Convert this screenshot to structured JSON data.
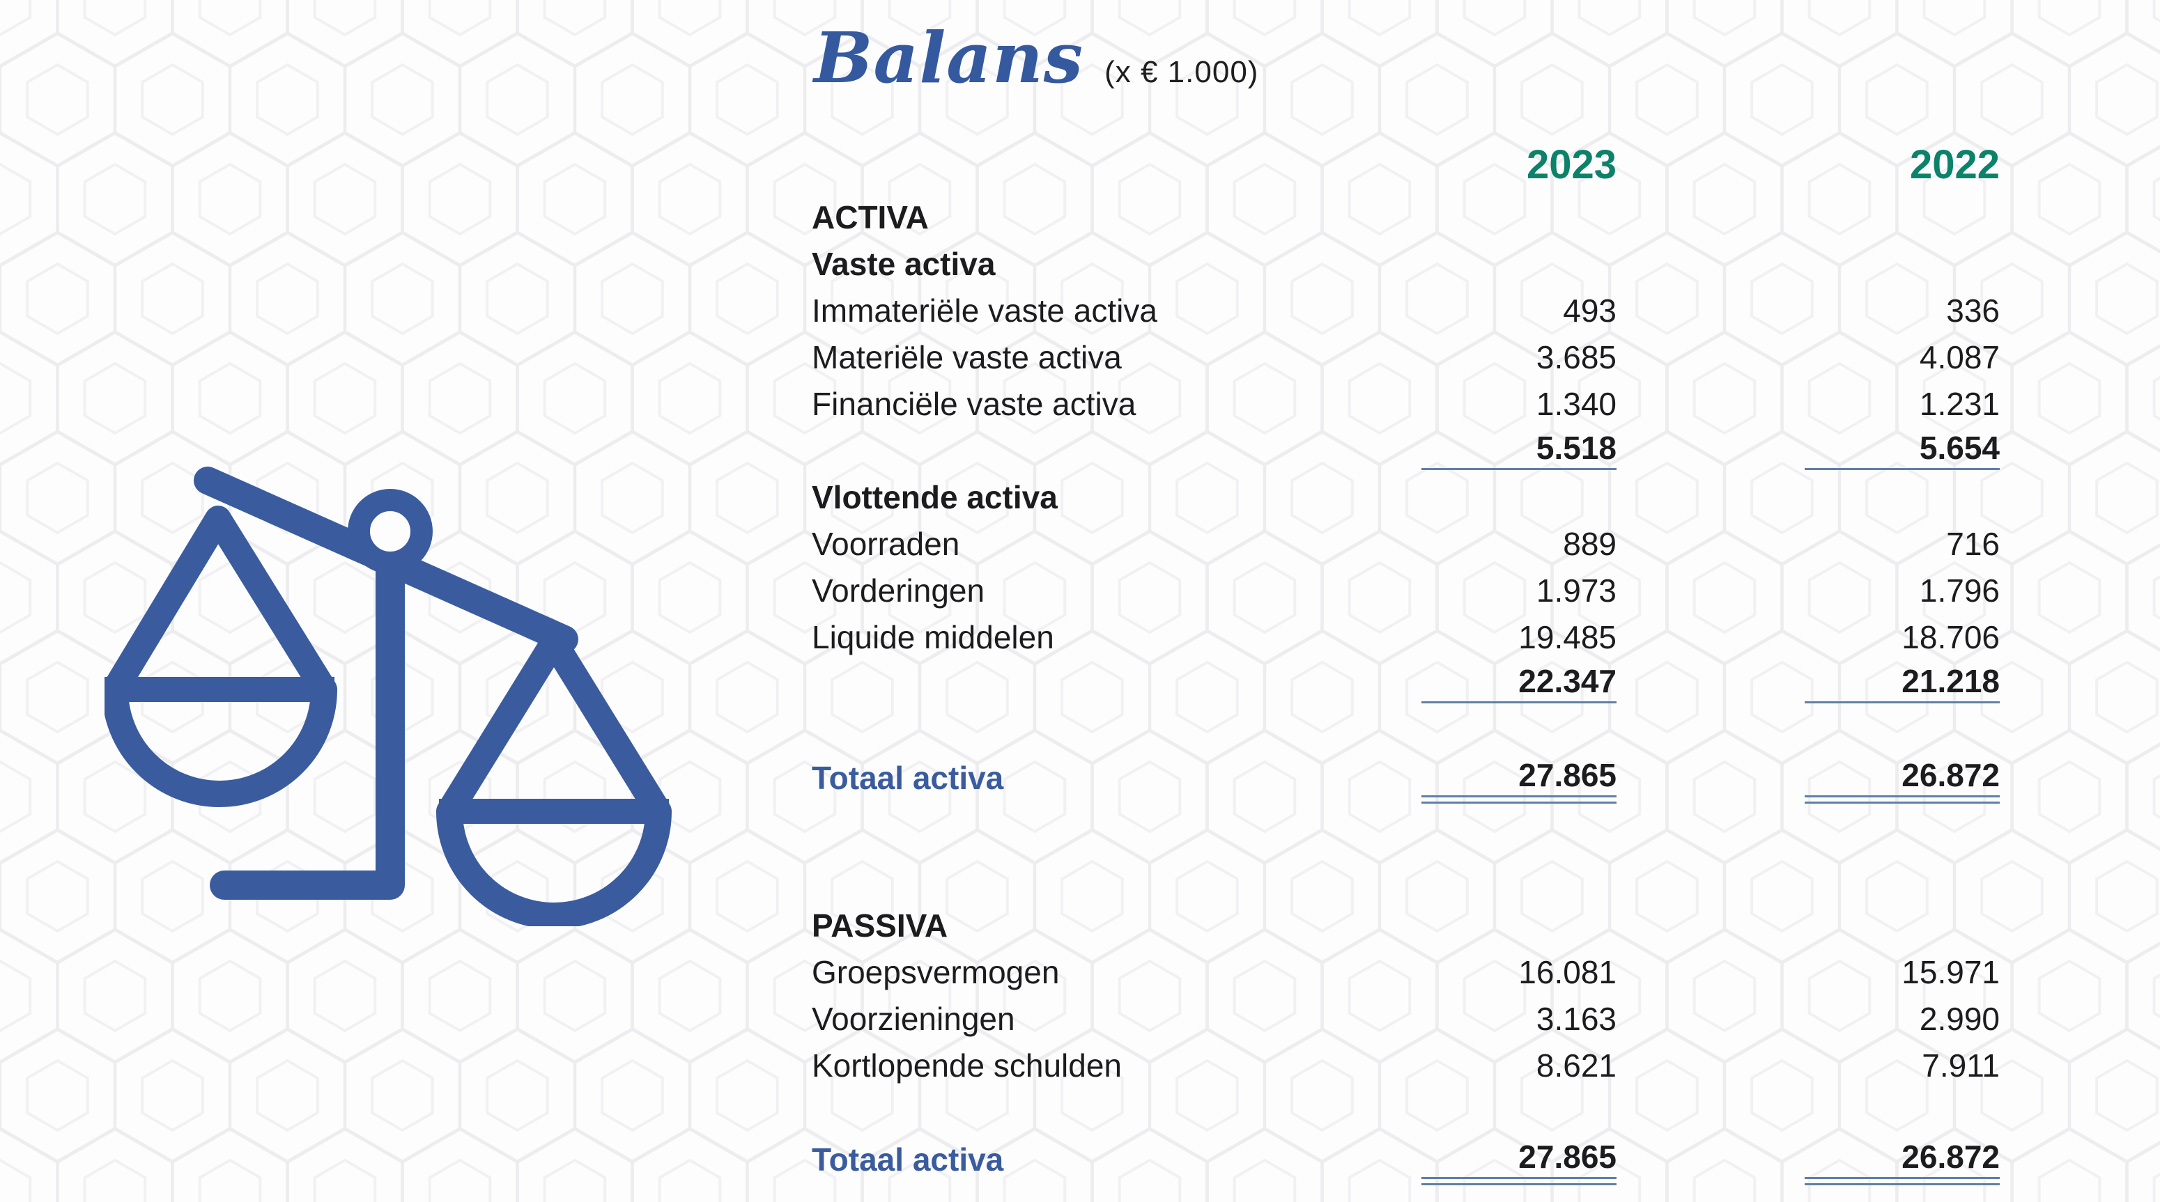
{
  "title": {
    "main": "Balans",
    "unit": "(x € 1.000)"
  },
  "columns": {
    "year1": "2023",
    "year2": "2022"
  },
  "colors": {
    "accent_blue": "#3A5C9E",
    "title_blue": "#35599E",
    "year_green": "#0B8269",
    "rule_blue": "#5F80A7",
    "text": "#1C1C1E",
    "background": "#FDFDFE",
    "pattern_line": "#EDEDEF"
  },
  "icon": {
    "name": "balance-scale-icon",
    "description": "tilted balance scale with two pans"
  },
  "rows": [
    {
      "type": "section",
      "gap": "none",
      "label": "ACTIVA",
      "y2023": "",
      "y2022": ""
    },
    {
      "type": "section",
      "gap": "none",
      "label": "Vaste activa",
      "y2023": "",
      "y2022": ""
    },
    {
      "type": "item",
      "gap": "none",
      "label": "Immateriële vaste activa",
      "y2023": "493",
      "y2022": "336"
    },
    {
      "type": "item",
      "gap": "none",
      "label": "Materiële vaste activa",
      "y2023": "3.685",
      "y2022": "4.087"
    },
    {
      "type": "item",
      "gap": "none",
      "label": "Financiële vaste activa",
      "y2023": "1.340",
      "y2022": "1.231"
    },
    {
      "type": "subtotal",
      "gap": "none",
      "label": "",
      "y2023": "5.518",
      "y2022": "5.654"
    },
    {
      "type": "section",
      "gap": "none",
      "label": "Vlottende activa",
      "y2023": "",
      "y2022": ""
    },
    {
      "type": "item",
      "gap": "none",
      "label": "Voorraden",
      "y2023": "889",
      "y2022": "716"
    },
    {
      "type": "item",
      "gap": "none",
      "label": "Vorderingen",
      "y2023": "1.973",
      "y2022": "1.796"
    },
    {
      "type": "item",
      "gap": "none",
      "label": "Liquide middelen",
      "y2023": "19.485",
      "y2022": "18.706"
    },
    {
      "type": "subtotal",
      "gap": "none",
      "label": "",
      "y2023": "22.347",
      "y2022": "21.218"
    },
    {
      "type": "total",
      "gap": "md",
      "label": "Totaal activa",
      "y2023": "27.865",
      "y2022": "26.872"
    },
    {
      "type": "section",
      "gap": "lg",
      "label": "PASSIVA",
      "y2023": "",
      "y2022": ""
    },
    {
      "type": "item",
      "gap": "none",
      "label": "Groepsvermogen",
      "y2023": "16.081",
      "y2022": "15.971"
    },
    {
      "type": "item",
      "gap": "none",
      "label": "Voorzieningen",
      "y2023": "3.163",
      "y2022": "2.990"
    },
    {
      "type": "item",
      "gap": "none",
      "label": "Kortlopende schulden",
      "y2023": "8.621",
      "y2022": "7.911"
    },
    {
      "type": "total",
      "gap": "md",
      "label": "Totaal activa",
      "y2023": "27.865",
      "y2022": "26.872"
    }
  ]
}
